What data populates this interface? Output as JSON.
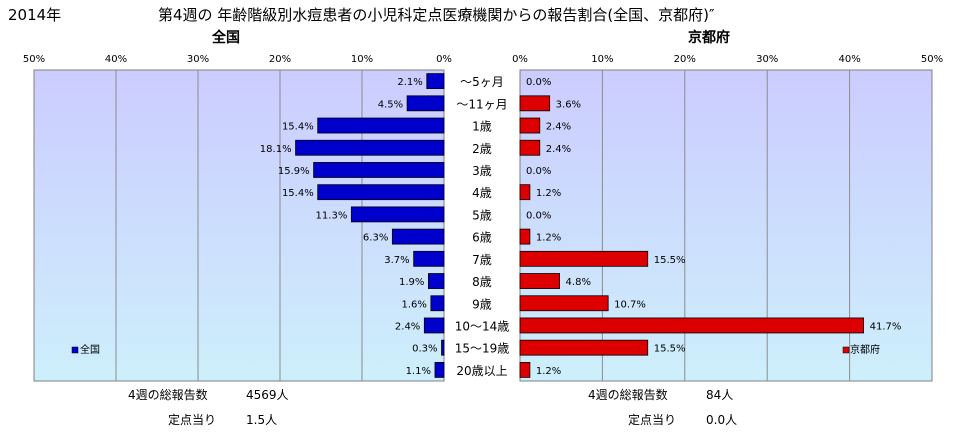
{
  "title_year": "2014年",
  "title": "第4週の 年齢階級別水痘患者の小児科定点医療機関からの報告割合(全国、京都府)″",
  "chart_data": {
    "type": "bar",
    "orientation": "horizontal",
    "categories": [
      "～5ヶ月",
      "～11ヶ月",
      "1歳",
      "2歳",
      "3歳",
      "4歳",
      "5歳",
      "6歳",
      "7歳",
      "8歳",
      "9歳",
      "10～14歳",
      "15～19歳",
      "20歳以上"
    ],
    "xlim": [
      0,
      50
    ],
    "x_ticks": [
      "50%",
      "40%",
      "30%",
      "20%",
      "10%",
      "0%"
    ],
    "x_ticks_right": [
      "0%",
      "10%",
      "20%",
      "30%",
      "40%",
      "50%"
    ],
    "grid": true,
    "panels": [
      {
        "title": "全国",
        "legend": "全国",
        "legend_position": "bottom-left",
        "color": "#0000cc",
        "values": [
          2.1,
          4.5,
          15.4,
          18.1,
          15.9,
          15.4,
          11.3,
          6.3,
          3.7,
          1.9,
          1.6,
          2.4,
          0.3,
          1.1
        ],
        "labels": [
          "2.1%",
          "4.5%",
          "15.4%",
          "18.1%",
          "15.9%",
          "15.4%",
          "11.3%",
          "6.3%",
          "3.7%",
          "1.9%",
          "1.6%",
          "2.4%",
          "0.3%",
          "1.1%"
        ]
      },
      {
        "title": "京都府",
        "legend": "京都府",
        "legend_position": "bottom-right",
        "color": "#dd0000",
        "values": [
          0.0,
          3.6,
          2.4,
          2.4,
          0.0,
          1.2,
          0.0,
          1.2,
          15.5,
          4.8,
          10.7,
          41.7,
          15.5,
          1.2
        ],
        "labels": [
          "0.0%",
          "3.6%",
          "2.4%",
          "2.4%",
          "0.0%",
          "1.2%",
          "0.0%",
          "1.2%",
          "15.5%",
          "4.8%",
          "10.7%",
          "41.7%",
          "15.5%",
          "1.2%"
        ]
      }
    ]
  },
  "footer": {
    "left": {
      "total_label": "4週の総報告数",
      "total_value": "4569人",
      "per_label": "定点当り",
      "per_value": "1.5人"
    },
    "right": {
      "total_label": "4週の総報告数",
      "total_value": "84人",
      "per_label": "定点当り",
      "per_value": "0.0人"
    }
  },
  "colors": {
    "plot_bg": "#cdeffb",
    "plot_bg_top": "#ccccff",
    "grid": "#8c8c8c",
    "left_bar": "#0000cc",
    "right_bar": "#dd0000"
  }
}
